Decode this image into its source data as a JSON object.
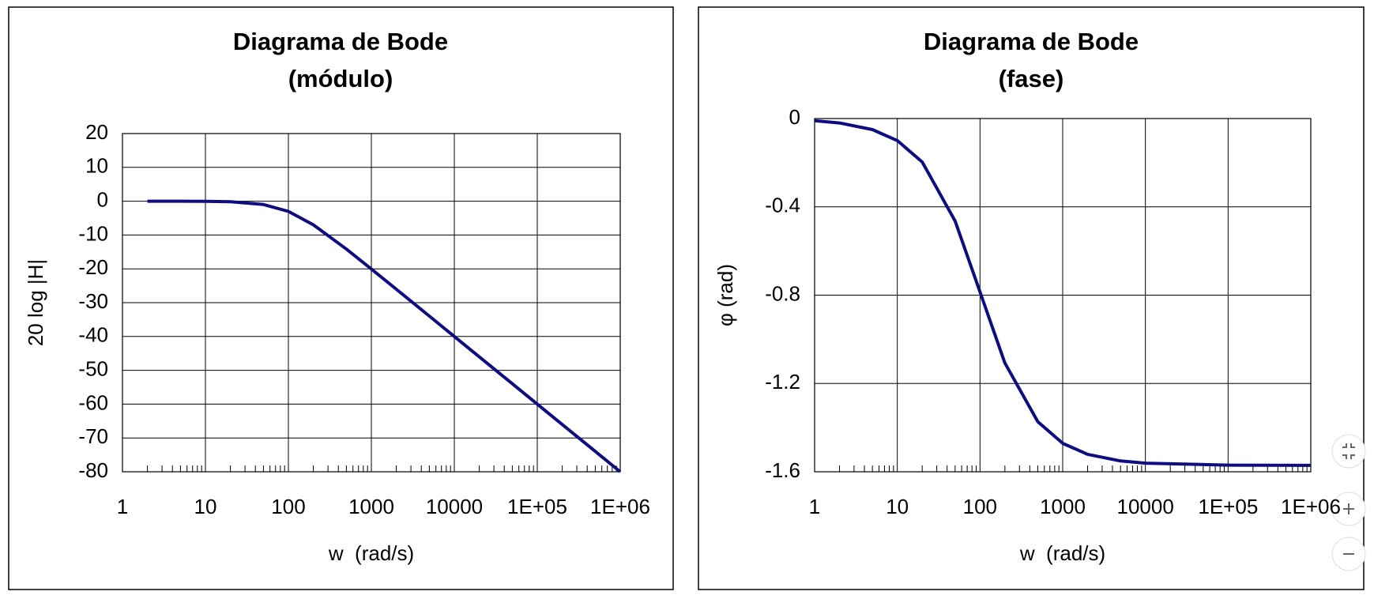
{
  "chart_data": [
    {
      "type": "line",
      "title": [
        "Diagrama de Bode",
        "(módulo)"
      ],
      "x_label": "w  (rad/s)",
      "y_label": "20 log |H|",
      "xscale": "log",
      "grid": true,
      "color": "#0d0d80",
      "xlim": [
        1,
        1000000
      ],
      "xticks": [
        1,
        10,
        100,
        1000,
        10000,
        {
          "value": 100000,
          "label": "1E+05"
        },
        {
          "value": 1000000,
          "label": "1E+06"
        }
      ],
      "ylim": [
        -80,
        20
      ],
      "yticks": [
        20,
        10,
        0,
        -10,
        -20,
        -30,
        -40,
        -50,
        -60,
        -70,
        -80
      ],
      "x": [
        2,
        5,
        10,
        20,
        50,
        100,
        200,
        500,
        1000,
        2000,
        5000,
        10000,
        20000,
        50000,
        100000,
        200000,
        500000,
        1000000
      ],
      "values": [
        0,
        0,
        -0.04,
        -0.17,
        -0.97,
        -3.01,
        -6.99,
        -14.15,
        -20.04,
        -26.03,
        -33.98,
        -40,
        -46.02,
        -53.98,
        -60,
        -66.02,
        -73.98,
        -80
      ]
    },
    {
      "type": "line",
      "title": [
        "Diagrama de Bode",
        "(fase)"
      ],
      "x_label": "w  (rad/s)",
      "y_label": "φ (rad)",
      "xscale": "log",
      "grid": true,
      "color": "#0d0d80",
      "xlim": [
        1,
        1000000
      ],
      "xticks": [
        1,
        10,
        100,
        1000,
        10000,
        {
          "value": 100000,
          "label": "1E+05"
        },
        {
          "value": 1000000,
          "label": "1E+06"
        }
      ],
      "ylim": [
        -1.6,
        0
      ],
      "yticks": [
        0,
        -0.4,
        -0.8,
        -1.2,
        -1.6
      ],
      "x": [
        1,
        2,
        5,
        10,
        20,
        50,
        100,
        200,
        500,
        1000,
        2000,
        5000,
        10000,
        100000,
        1000000
      ],
      "values": [
        -0.01,
        -0.02,
        -0.05,
        -0.1,
        -0.197,
        -0.464,
        -0.785,
        -1.107,
        -1.373,
        -1.471,
        -1.521,
        -1.551,
        -1.561,
        -1.57,
        -1.571
      ]
    }
  ]
}
